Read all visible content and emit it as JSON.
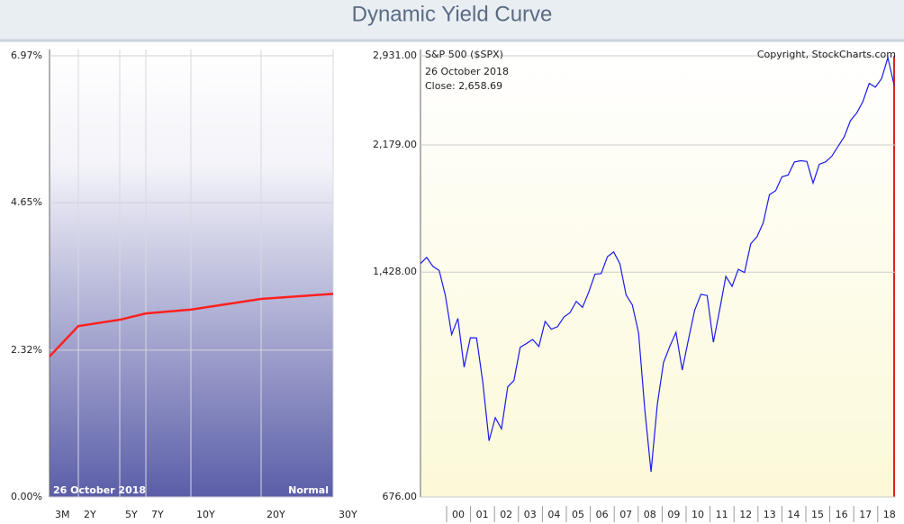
{
  "title": "Dynamic Yield Curve",
  "chart_data": [
    {
      "type": "line",
      "categories": [
        "3M",
        "2Y",
        "5Y",
        "7Y",
        "10Y",
        "20Y",
        "30Y"
      ],
      "values": [
        2.22,
        2.7,
        2.8,
        2.9,
        2.96,
        3.13,
        3.21
      ],
      "color": "#ff2020",
      "ylim": [
        0,
        6.97
      ],
      "yticks": [
        {
          "value": 0,
          "label": "0.00%"
        },
        {
          "value": 2.32,
          "label": "2.32%"
        },
        {
          "value": 4.65,
          "label": "4.65%"
        },
        {
          "value": 6.97,
          "label": "6.97%"
        }
      ],
      "annotations": [
        "26 October 2018",
        "Normal"
      ],
      "grid": true
    },
    {
      "type": "line",
      "title": "S&P 500 ($SPX)",
      "annotations": [
        "26 October 2018",
        "Close: 2,658.69",
        "Copyright, StockCharts.com"
      ],
      "x_labels": [
        "00",
        "01",
        "02",
        "03",
        "04",
        "05",
        "06",
        "07",
        "08",
        "09",
        "10",
        "11",
        "12",
        "13",
        "14",
        "15",
        "16",
        "17",
        "18"
      ],
      "values": [
        1469,
        1499,
        1455,
        1436,
        1320,
        1160,
        1224,
        1041,
        1148,
        1147,
        990,
        815,
        880,
        848,
        975,
        996,
        1112,
        1126,
        1141,
        1115,
        1212,
        1181,
        1191,
        1229,
        1248,
        1295,
        1270,
        1336,
        1418,
        1421,
        1503,
        1527,
        1468,
        1323,
        1280,
        1166,
        903,
        735,
        919,
        1057,
        1115,
        1169,
        1031,
        1141,
        1258,
        1326,
        1321,
        1131,
        1258,
        1408,
        1362,
        1441,
        1426,
        1569,
        1606,
        1682,
        1848,
        1872,
        1960,
        1972,
        2059,
        2068,
        2063,
        1920,
        2044,
        2060,
        2099,
        2168,
        2239,
        2363,
        2423,
        2519,
        2674,
        2641,
        2718,
        2914,
        2659
      ],
      "color": "#1a1aee",
      "log_scale": true,
      "ylim": [
        676,
        2931
      ],
      "yticks": [
        {
          "value": 676,
          "label": "676.00"
        },
        {
          "value": 1428,
          "label": "1,428.00"
        },
        {
          "value": 2179,
          "label": "2,179.00"
        },
        {
          "value": 2931,
          "label": "2,931.00"
        }
      ],
      "grid": true
    }
  ]
}
